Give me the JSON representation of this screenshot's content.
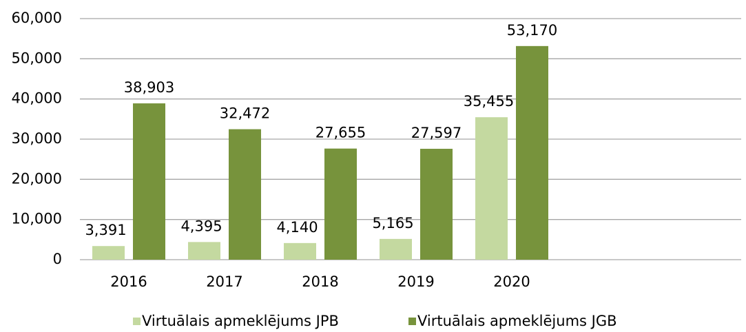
{
  "chart_data": {
    "type": "bar",
    "categories": [
      "2016",
      "2017",
      "2018",
      "2019",
      "2020"
    ],
    "series": [
      {
        "name": "Virtuālais apmeklējums JPB",
        "color": "#c4d9a0",
        "values": [
          3391,
          4395,
          4140,
          5165,
          35455
        ],
        "value_labels": [
          "3,391",
          "4,395",
          "4,140",
          "5,165",
          "35,455"
        ]
      },
      {
        "name": "Virtuālais apmeklējums JGB",
        "color": "#77933c",
        "values": [
          38903,
          32472,
          27655,
          27597,
          53170
        ],
        "value_labels": [
          "38,903",
          "32,472",
          "27,655",
          "27,597",
          "53,170"
        ]
      }
    ],
    "ylim": [
      0,
      60000
    ],
    "yticks": [
      0,
      {
        "value": 10000,
        "label": "10,000"
      },
      {
        "value": 20000,
        "label": "20,000"
      },
      {
        "value": 30000,
        "label": "30,000"
      },
      {
        "value": 40000,
        "label": "40,000"
      },
      {
        "value": 50000,
        "label": "50,000"
      },
      {
        "value": 60000,
        "label": "60,000"
      }
    ],
    "grid": true,
    "legend": "bottom"
  }
}
